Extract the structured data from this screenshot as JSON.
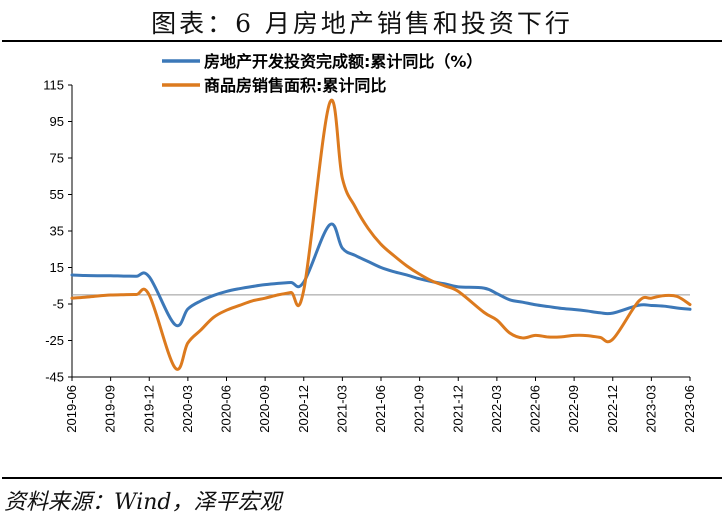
{
  "header": {
    "title": "图表：6 月房地产销售和投资下行"
  },
  "footer": {
    "source": "资料来源：Wind，泽平宏观"
  },
  "colors": {
    "investment": "#3c78b8",
    "sales": "#dc7a1e",
    "axis": "#000000",
    "zero_line": "#999999"
  },
  "chart_data": {
    "type": "line",
    "title": "",
    "xlabel": "",
    "ylabel": "",
    "ylim": [
      -45,
      115
    ],
    "yticks": [
      -45,
      -25,
      -5,
      15,
      35,
      55,
      75,
      95,
      115
    ],
    "xlim": [
      "2019-06",
      "2023-06"
    ],
    "xticks": [
      "2019-06",
      "2019-09",
      "2019-12",
      "2020-03",
      "2020-06",
      "2020-09",
      "2020-12",
      "2021-03",
      "2021-06",
      "2021-09",
      "2021-12",
      "2022-03",
      "2022-06",
      "2022-09",
      "2022-12",
      "2023-03",
      "2023-06"
    ],
    "grid": false,
    "legend_position": "top",
    "series": [
      {
        "name": "房地产开发投资完成额:累计同比（%）",
        "color": "#3c78b8",
        "x": [
          "2019-06",
          "2019-07",
          "2019-08",
          "2019-09",
          "2019-10",
          "2019-11",
          "2019-12",
          "2020-02",
          "2020-03",
          "2020-04",
          "2020-05",
          "2020-06",
          "2020-07",
          "2020-08",
          "2020-09",
          "2020-10",
          "2020-11",
          "2020-12",
          "2021-02",
          "2021-03",
          "2021-04",
          "2021-05",
          "2021-06",
          "2021-07",
          "2021-08",
          "2021-09",
          "2021-10",
          "2021-11",
          "2021-12",
          "2022-02",
          "2022-03",
          "2022-04",
          "2022-05",
          "2022-06",
          "2022-07",
          "2022-08",
          "2022-09",
          "2022-10",
          "2022-11",
          "2022-12",
          "2023-02",
          "2023-03",
          "2023-04",
          "2023-05",
          "2023-06"
        ],
        "values": [
          10.9,
          10.6,
          10.5,
          10.5,
          10.3,
          10.2,
          9.9,
          -16.3,
          -7.7,
          -3.3,
          -0.3,
          1.9,
          3.4,
          4.6,
          5.6,
          6.3,
          6.8,
          7.0,
          38.3,
          25.6,
          21.6,
          18.3,
          15.0,
          12.7,
          10.9,
          8.8,
          7.2,
          6.0,
          4.4,
          3.7,
          0.7,
          -2.7,
          -4.0,
          -5.4,
          -6.4,
          -7.4,
          -8.0,
          -8.8,
          -9.8,
          -10.0,
          -5.7,
          -5.8,
          -6.2,
          -7.2,
          -7.9
        ]
      },
      {
        "name": "商品房销售面积:累计同比",
        "color": "#dc7a1e",
        "x": [
          "2019-06",
          "2019-07",
          "2019-08",
          "2019-09",
          "2019-10",
          "2019-11",
          "2019-12",
          "2020-02",
          "2020-03",
          "2020-04",
          "2020-05",
          "2020-06",
          "2020-07",
          "2020-08",
          "2020-09",
          "2020-10",
          "2020-11",
          "2020-12",
          "2021-02",
          "2021-03",
          "2021-04",
          "2021-05",
          "2021-06",
          "2021-07",
          "2021-08",
          "2021-09",
          "2021-10",
          "2021-11",
          "2021-12",
          "2022-02",
          "2022-03",
          "2022-04",
          "2022-05",
          "2022-06",
          "2022-07",
          "2022-08",
          "2022-09",
          "2022-10",
          "2022-11",
          "2022-12",
          "2023-02",
          "2023-03",
          "2023-04",
          "2023-05",
          "2023-06"
        ],
        "values": [
          -1.8,
          -1.3,
          -0.6,
          -0.1,
          0.1,
          0.2,
          -0.1,
          -39.9,
          -26.3,
          -19.3,
          -12.3,
          -8.4,
          -5.8,
          -3.3,
          -1.8,
          0.0,
          1.3,
          2.6,
          104.9,
          63.8,
          48.1,
          36.4,
          27.7,
          21.5,
          15.9,
          11.3,
          7.5,
          4.8,
          1.9,
          -9.6,
          -13.8,
          -20.9,
          -23.6,
          -22.2,
          -23.1,
          -23.0,
          -22.2,
          -22.3,
          -23.3,
          -24.3,
          -3.6,
          -1.8,
          -0.4,
          -0.9,
          -5.3
        ]
      }
    ]
  }
}
